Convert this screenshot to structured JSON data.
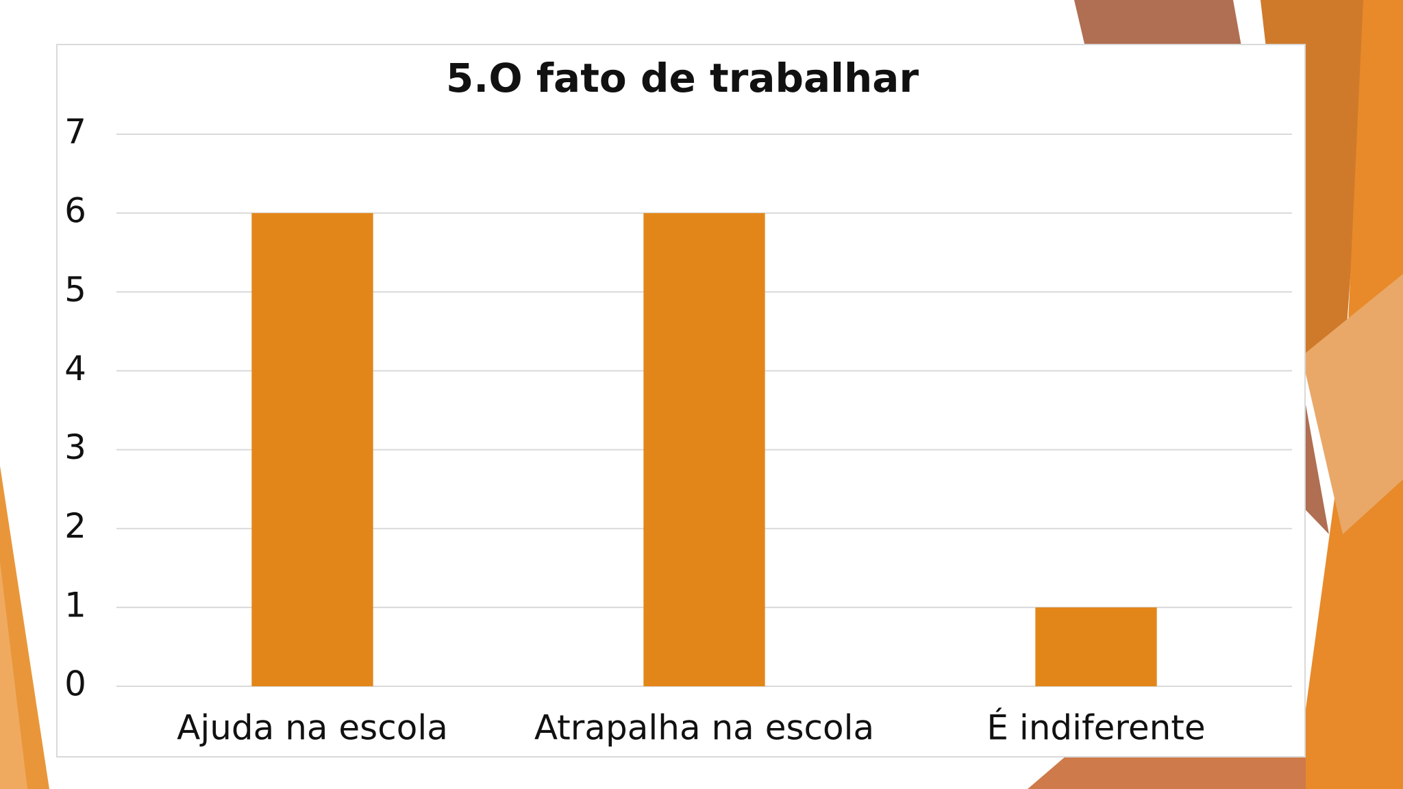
{
  "slide": {
    "accent_color": "#e3861a",
    "accent_dark": "#b06040",
    "accent_light": "#efa24a"
  },
  "chart_data": {
    "type": "bar",
    "title": "5.O fato de trabalhar",
    "categories": [
      "Ajuda na escola",
      "Atrapalha na escola",
      "É indiferente"
    ],
    "values": [
      6,
      6,
      1
    ],
    "xlabel": "",
    "ylabel": "",
    "ylim": [
      0,
      7
    ],
    "yticks": [
      "0",
      "1",
      "2",
      "3",
      "4",
      "5",
      "6",
      "7"
    ],
    "grid": true,
    "legend": "none",
    "bar_color": "#e3861a"
  }
}
